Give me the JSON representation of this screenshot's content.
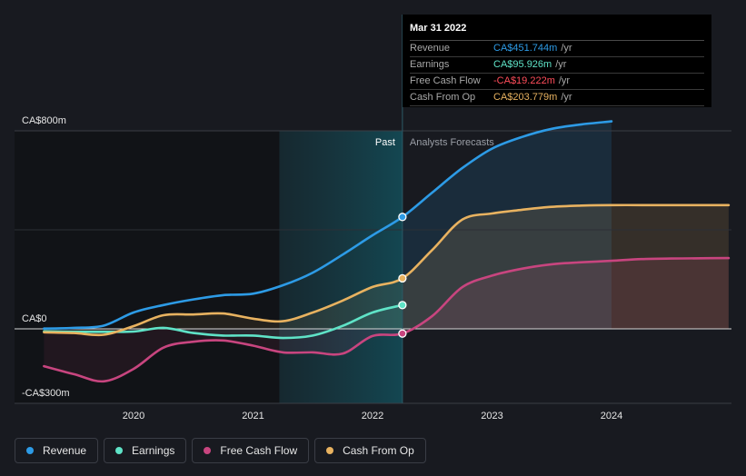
{
  "colors": {
    "revenue": "#2d9be6",
    "earnings": "#5fe3c7",
    "free_cash_flow": "#c8457f",
    "cash_from_op": "#e8b260",
    "negative": "#ff4d5a"
  },
  "tooltip": {
    "date": "Mar 31 2022",
    "rows": [
      {
        "label": "Revenue",
        "value": "CA$451.744m",
        "unit": "/yr",
        "color_key": "revenue"
      },
      {
        "label": "Earnings",
        "value": "CA$95.926m",
        "unit": "/yr",
        "color_key": "earnings"
      },
      {
        "label": "Free Cash Flow",
        "value": "-CA$19.222m",
        "unit": "/yr",
        "color_key": "negative"
      },
      {
        "label": "Cash From Op",
        "value": "CA$203.779m",
        "unit": "/yr",
        "color_key": "cash_from_op"
      }
    ]
  },
  "legend": [
    {
      "label": "Revenue",
      "color_key": "revenue"
    },
    {
      "label": "Earnings",
      "color_key": "earnings"
    },
    {
      "label": "Free Cash Flow",
      "color_key": "free_cash_flow"
    },
    {
      "label": "Cash From Op",
      "color_key": "cash_from_op"
    }
  ],
  "chart_data": {
    "type": "line",
    "title": "",
    "xlabel": "",
    "ylabel": "",
    "x_ticks": [
      2020,
      2021,
      2022,
      2023,
      2024
    ],
    "xlim": [
      2019.25,
      2024.98
    ],
    "y_ticks": [
      {
        "value": 800,
        "label": "CA$800m"
      },
      {
        "value": 0,
        "label": "CA$0"
      },
      {
        "value": -300,
        "label": "-CA$300m"
      }
    ],
    "ylim": [
      -300,
      800
    ],
    "past_label": "Past",
    "forecast_label": "Analysts Forecasts",
    "past_start": 2021.22,
    "divider_x": 2022.25,
    "series": [
      {
        "name": "Revenue",
        "color_key": "revenue",
        "points": [
          [
            2019.25,
            1
          ],
          [
            2019.5,
            4
          ],
          [
            2019.75,
            13
          ],
          [
            2020.0,
            66
          ],
          [
            2020.25,
            96
          ],
          [
            2020.5,
            119
          ],
          [
            2020.75,
            136
          ],
          [
            2021.0,
            142
          ],
          [
            2021.25,
            176
          ],
          [
            2021.5,
            227
          ],
          [
            2021.75,
            300
          ],
          [
            2022.0,
            378
          ],
          [
            2022.25,
            452
          ],
          [
            2022.5,
            551
          ],
          [
            2022.75,
            649
          ],
          [
            2023.0,
            728
          ],
          [
            2023.25,
            775
          ],
          [
            2023.5,
            808
          ],
          [
            2023.75,
            826
          ],
          [
            2024.0,
            838
          ]
        ],
        "forecast_end": 2024.0,
        "marker": 452
      },
      {
        "name": "Earnings",
        "color_key": "earnings",
        "points": [
          [
            2019.25,
            -10
          ],
          [
            2019.5,
            -12
          ],
          [
            2019.75,
            -12
          ],
          [
            2020.0,
            -11
          ],
          [
            2020.25,
            4
          ],
          [
            2020.5,
            -17
          ],
          [
            2020.75,
            -27
          ],
          [
            2021.0,
            -27
          ],
          [
            2021.25,
            -37
          ],
          [
            2021.5,
            -27
          ],
          [
            2021.75,
            12
          ],
          [
            2022.0,
            66
          ],
          [
            2022.25,
            96
          ]
        ],
        "marker": 96
      },
      {
        "name": "Free Cash Flow",
        "color_key": "free_cash_flow",
        "points": [
          [
            2019.25,
            -151
          ],
          [
            2019.5,
            -183
          ],
          [
            2019.75,
            -212
          ],
          [
            2020.0,
            -162
          ],
          [
            2020.25,
            -76
          ],
          [
            2020.5,
            -52
          ],
          [
            2020.75,
            -47
          ],
          [
            2021.0,
            -68
          ],
          [
            2021.25,
            -95
          ],
          [
            2021.5,
            -95
          ],
          [
            2021.75,
            -100
          ],
          [
            2022.0,
            -29
          ],
          [
            2022.25,
            -19
          ],
          [
            2022.5,
            52
          ],
          [
            2022.75,
            168
          ],
          [
            2023.0,
            215
          ],
          [
            2023.25,
            243
          ],
          [
            2023.5,
            261
          ],
          [
            2023.75,
            269
          ],
          [
            2024.0,
            275
          ],
          [
            2024.25,
            282
          ],
          [
            2024.5,
            284
          ],
          [
            2024.75,
            285
          ],
          [
            2024.98,
            286
          ]
        ],
        "marker": -19
      },
      {
        "name": "Cash From Op",
        "color_key": "cash_from_op",
        "points": [
          [
            2019.25,
            -14
          ],
          [
            2019.5,
            -17
          ],
          [
            2019.75,
            -24
          ],
          [
            2020.0,
            11
          ],
          [
            2020.25,
            55
          ],
          [
            2020.5,
            58
          ],
          [
            2020.75,
            62
          ],
          [
            2021.0,
            41
          ],
          [
            2021.25,
            31
          ],
          [
            2021.5,
            66
          ],
          [
            2021.75,
            114
          ],
          [
            2022.0,
            169
          ],
          [
            2022.25,
            204
          ],
          [
            2022.5,
            319
          ],
          [
            2022.75,
            441
          ],
          [
            2023.0,
            466
          ],
          [
            2023.25,
            481
          ],
          [
            2023.5,
            493
          ],
          [
            2023.75,
            498
          ],
          [
            2024.0,
            500
          ],
          [
            2024.25,
            500
          ],
          [
            2024.5,
            500
          ],
          [
            2024.75,
            500
          ],
          [
            2024.98,
            500
          ]
        ],
        "marker": 204
      }
    ]
  }
}
